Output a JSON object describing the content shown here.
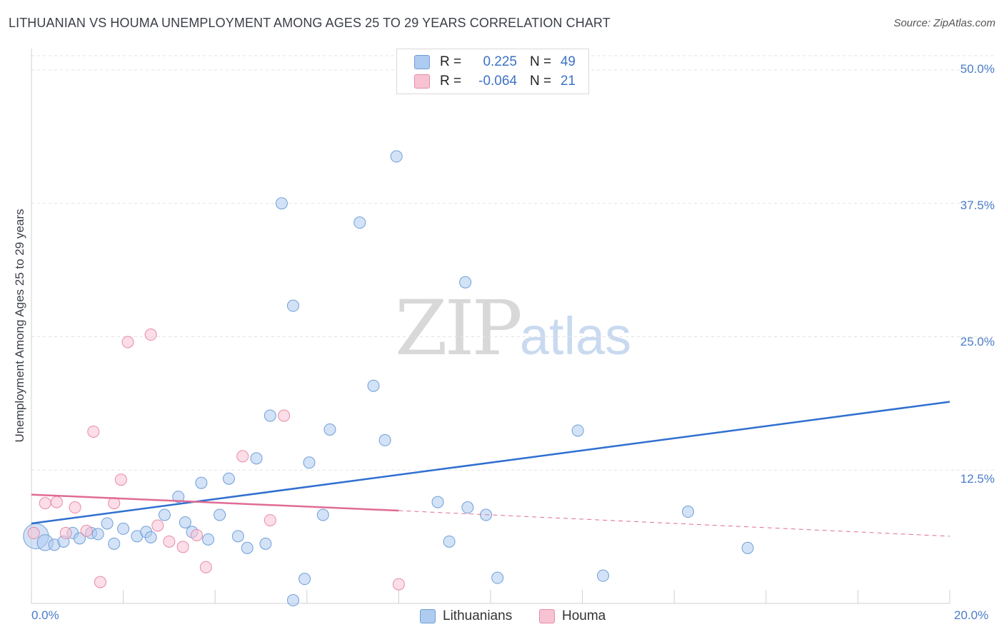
{
  "header": {
    "title": "LITHUANIAN VS HOUMA UNEMPLOYMENT AMONG AGES 25 TO 29 YEARS CORRELATION CHART",
    "source": "Source: ZipAtlas.com"
  },
  "watermark": {
    "zip": "ZIP",
    "atlas": "atlas"
  },
  "legend": {
    "rows": [
      {
        "r_label": "R =",
        "r_value": "0.225",
        "n_label": "N =",
        "n_value": "49",
        "color": "#aecbf0"
      },
      {
        "r_label": "R =",
        "r_value": "-0.064",
        "n_label": "N =",
        "n_value": "21",
        "color": "#f7c3d3"
      }
    ]
  },
  "bottom_legend": [
    {
      "label": "Lithuanians",
      "color": "#aecbf0"
    },
    {
      "label": "Houma",
      "color": "#f7c3d3"
    }
  ],
  "chart_data": {
    "type": "scatter",
    "title": "LITHUANIAN VS HOUMA UNEMPLOYMENT AMONG AGES 25 TO 29 YEARS CORRELATION CHART",
    "xlabel": "",
    "ylabel": "Unemployment Among Ages 25 to 29 years",
    "xlim": [
      0,
      20
    ],
    "ylim": [
      0,
      50
    ],
    "x_tick_labels": [
      "0.0%",
      "20.0%"
    ],
    "y_tick_labels": [
      "12.5%",
      "25.0%",
      "37.5%",
      "50.0%"
    ],
    "y_ticks": [
      12.5,
      25,
      37.5,
      50
    ],
    "grid": true,
    "series": [
      {
        "name": "Lithuanians",
        "color": "#aecbf0",
        "stroke": "#6f9fd8",
        "trend": {
          "x": [
            0,
            20
          ],
          "y": [
            7.5,
            18.9
          ],
          "color": "#2f6fd0"
        },
        "points": [
          [
            0.1,
            6.3,
            2.2
          ],
          [
            0.3,
            5.7,
            1.4
          ],
          [
            0.5,
            5.5,
            1
          ],
          [
            0.7,
            5.8,
            1
          ],
          [
            0.9,
            6.6,
            1
          ],
          [
            1.05,
            6.1,
            1
          ],
          [
            1.3,
            6.6,
            1
          ],
          [
            1.45,
            6.5,
            1
          ],
          [
            1.65,
            7.5,
            1
          ],
          [
            1.8,
            5.6,
            1
          ],
          [
            2.0,
            7.0,
            1
          ],
          [
            2.3,
            6.3,
            1
          ],
          [
            2.5,
            6.7,
            1
          ],
          [
            2.6,
            6.2,
            1
          ],
          [
            2.9,
            8.3,
            1
          ],
          [
            3.2,
            10.0,
            1
          ],
          [
            3.35,
            7.6,
            1
          ],
          [
            3.5,
            6.7,
            1
          ],
          [
            3.7,
            11.3,
            1
          ],
          [
            3.85,
            6.0,
            1
          ],
          [
            4.1,
            8.3,
            1
          ],
          [
            4.3,
            11.7,
            1
          ],
          [
            4.5,
            6.3,
            1
          ],
          [
            4.7,
            5.2,
            1
          ],
          [
            4.9,
            13.6,
            1
          ],
          [
            5.1,
            5.6,
            1
          ],
          [
            5.2,
            17.6,
            1
          ],
          [
            5.45,
            37.5,
            1
          ],
          [
            5.7,
            27.9,
            1
          ],
          [
            5.95,
            2.3,
            1
          ],
          [
            5.7,
            0.3,
            1
          ],
          [
            6.05,
            13.2,
            1
          ],
          [
            6.35,
            8.3,
            1
          ],
          [
            6.5,
            16.3,
            1
          ],
          [
            7.15,
            35.7,
            1
          ],
          [
            7.45,
            20.4,
            1
          ],
          [
            7.7,
            15.3,
            1
          ],
          [
            7.95,
            41.9,
            1
          ],
          [
            8.85,
            9.5,
            1
          ],
          [
            9.1,
            5.8,
            1
          ],
          [
            9.45,
            30.1,
            1
          ],
          [
            9.5,
            9.0,
            1
          ],
          [
            9.9,
            8.3,
            1
          ],
          [
            10.15,
            2.4,
            1
          ],
          [
            11.9,
            16.2,
            1
          ],
          [
            12.45,
            2.6,
            1
          ],
          [
            14.3,
            8.6,
            1
          ],
          [
            15.6,
            5.2,
            1
          ]
        ]
      },
      {
        "name": "Houma",
        "color": "#f7c3d3",
        "stroke": "#e98aa8",
        "trend": {
          "x": [
            0,
            8
          ],
          "y": [
            10.2,
            8.7
          ],
          "dashed_to": [
            20,
            6.3
          ],
          "color": "#e06c93"
        },
        "points": [
          [
            0.05,
            6.6,
            1
          ],
          [
            0.3,
            9.4,
            1
          ],
          [
            0.55,
            9.5,
            1
          ],
          [
            0.75,
            6.6,
            1
          ],
          [
            0.95,
            9.0,
            1
          ],
          [
            1.2,
            6.8,
            1
          ],
          [
            1.35,
            16.1,
            1
          ],
          [
            1.5,
            2.0,
            1
          ],
          [
            1.8,
            9.4,
            1
          ],
          [
            1.95,
            11.6,
            1
          ],
          [
            2.1,
            24.5,
            1
          ],
          [
            2.6,
            25.2,
            1
          ],
          [
            2.75,
            7.3,
            1
          ],
          [
            3.0,
            5.8,
            1
          ],
          [
            3.3,
            5.3,
            1
          ],
          [
            3.6,
            6.4,
            1
          ],
          [
            3.8,
            3.4,
            1
          ],
          [
            4.6,
            13.8,
            1
          ],
          [
            5.5,
            17.6,
            1
          ],
          [
            5.2,
            7.8,
            1
          ],
          [
            8.0,
            1.8,
            1
          ]
        ]
      }
    ]
  }
}
